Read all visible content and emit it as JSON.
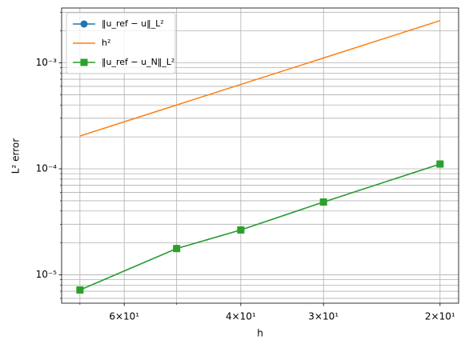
{
  "chart_data": {
    "type": "line",
    "log_x": true,
    "log_y": true,
    "grid": true,
    "legend": "upper left",
    "x_label": "h",
    "y_label": "L² error",
    "x": [
      70,
      50,
      40,
      30,
      20
    ],
    "series": [
      {
        "name": "‖u_ref − u‖_L²",
        "color": "#1f77b4",
        "marker": "circle",
        "values": [
          7.2e-06,
          1.77e-05,
          2.65e-05,
          4.86e-05,
          0.000111
        ]
      },
      {
        "name": "h²",
        "color": "#ff7f0e",
        "marker": "none",
        "values": [
          0.000204,
          0.0004,
          0.000625,
          0.00111,
          0.0025
        ]
      },
      {
        "name": "‖u_ref − u_N‖_L²",
        "color": "#2ca02c",
        "marker": "square",
        "values": [
          7.2e-06,
          1.77e-05,
          2.65e-05,
          4.86e-05,
          0.000111
        ]
      }
    ],
    "xlim": [
      74.6,
      18.75
    ],
    "xticks": [
      {
        "value": 60,
        "label": "6×10¹"
      },
      {
        "value": 40,
        "label": "4×10¹"
      },
      {
        "value": 30,
        "label": "3×10¹"
      },
      {
        "value": 20,
        "label": "2×10¹"
      }
    ],
    "xminorticks": [
      70,
      50
    ],
    "ylim": [
      5.4e-06,
      0.00329
    ],
    "yticks": [
      {
        "value": 1e-05,
        "label": "10⁻⁵"
      },
      {
        "value": 0.0001,
        "label": "10⁻⁴"
      },
      {
        "value": 0.001,
        "label": "10⁻³"
      }
    ],
    "yminorticks": [
      6e-06,
      7e-06,
      8e-06,
      9e-06,
      2e-05,
      3e-05,
      4e-05,
      5e-05,
      6e-05,
      7e-05,
      8e-05,
      9e-05,
      0.0002,
      0.0003,
      0.0004,
      0.0005,
      0.0006,
      0.0007,
      0.0008,
      0.0009,
      0.002,
      0.003
    ]
  }
}
